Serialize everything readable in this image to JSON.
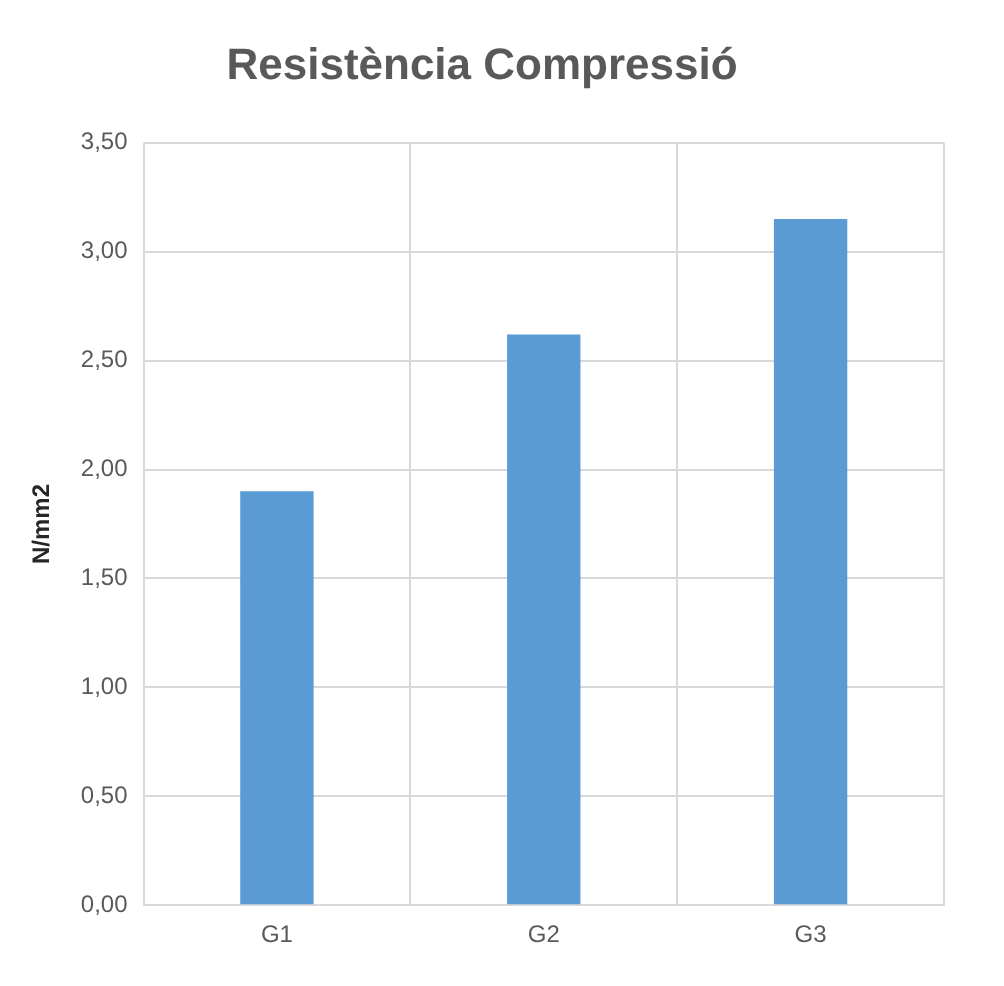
{
  "chart_data": {
    "type": "bar",
    "title": "Resistència Compressió",
    "ylabel": "N/mm2",
    "categories": [
      "G1",
      "G2",
      "G3"
    ],
    "values": [
      1.9,
      2.62,
      3.15
    ],
    "color": "#5b9bd5",
    "ylim": [
      0,
      3.5
    ],
    "yticks": [
      {
        "value": 0,
        "label": "0,00"
      },
      {
        "value": 0.5,
        "label": "0,50"
      },
      {
        "value": 1,
        "label": "1,00"
      },
      {
        "value": 1.5,
        "label": "1,50"
      },
      {
        "value": 2,
        "label": "2,00"
      },
      {
        "value": 2.5,
        "label": "2,50"
      },
      {
        "value": 3,
        "label": "3,00"
      },
      {
        "value": 3.5,
        "label": "3,50"
      }
    ],
    "grid": true
  }
}
